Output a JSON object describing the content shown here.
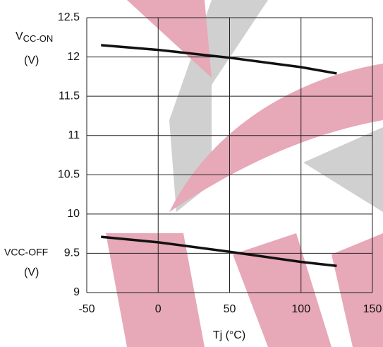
{
  "chart_data": {
    "type": "line",
    "x_label": "Tj  (°C)",
    "annotations": [
      {
        "main": "V",
        "sub": "CC-ON",
        "unit": "(V)"
      },
      {
        "main": "VCC-OFF",
        "unit": "(V)"
      }
    ],
    "x": [
      -40,
      0,
      50,
      100,
      125
    ],
    "series": [
      {
        "color": "#111111",
        "values": [
          12.15,
          12.09,
          11.99,
          11.87,
          11.79
        ]
      },
      {
        "color": "#111111",
        "values": [
          9.71,
          9.64,
          9.52,
          9.39,
          9.34
        ]
      }
    ],
    "xlim": [
      -50,
      150
    ],
    "xticks": [
      -50,
      0,
      50,
      100,
      150
    ],
    "ylim": [
      9,
      12.5
    ],
    "yticks": [
      9,
      9.5,
      10,
      10.5,
      11,
      11.5,
      12,
      12.5
    ],
    "grid": true
  }
}
